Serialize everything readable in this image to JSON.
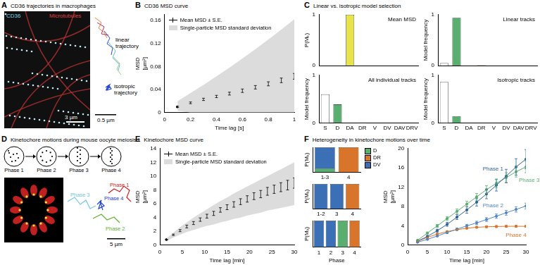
{
  "panels": [
    {
      "letter": "A",
      "title": "CD36 trajectories in macrophages",
      "image_labels": [
        "CD36",
        "Microtubules"
      ],
      "image_scale_bar": "3 µm",
      "trajectory_labels": [
        "linear trajectory",
        "isotropic trajectory"
      ],
      "trajectory_scale_bar": "0.5 µm"
    },
    {
      "letter": "B",
      "title": "CD36 MSD curve"
    },
    {
      "letter": "C",
      "title": "Linear vs. isotropic model selection"
    },
    {
      "letter": "D",
      "title": "Kinetochore motions during mouse oocyte meiosis I",
      "stages": [
        "Phase 1",
        "Phase 2",
        "Phase 3",
        "Phase 4"
      ],
      "trajectory_labels": [
        "Phase 1",
        "Phase 2",
        "Phase 3",
        "Phase 4"
      ],
      "scale_bar": "5 µm"
    },
    {
      "letter": "E",
      "title": "Kinetochore MSD curve"
    },
    {
      "letter": "F",
      "title": "Heterogeneity in kinetochore motions over time"
    }
  ],
  "chart_data": [
    {
      "type": "line",
      "x_label": "Time lag [s]",
      "y_label": [
        "MSD",
        "[µm²]"
      ],
      "legend": "upper left",
      "x": [
        0.1,
        0.2,
        0.3,
        0.4,
        0.5,
        0.6,
        0.7,
        0.8,
        0.9,
        1.0
      ],
      "series": [
        {
          "name": "Mean MSD ± S.E.",
          "color": "#000000",
          "values": [
            0.01,
            0.017,
            0.023,
            0.028,
            0.033,
            0.038,
            0.044,
            0.05,
            0.056,
            0.063
          ],
          "error": [
            0.001,
            0.0015,
            0.002,
            0.002,
            0.0025,
            0.003,
            0.003,
            0.0035,
            0.004,
            0.005
          ]
        }
      ],
      "band": {
        "name": "Single-particle MSD standard deviation",
        "color": "#dcdcdc",
        "lower": [
          0.003,
          0,
          0,
          0,
          0,
          0,
          0,
          0,
          0,
          0
        ],
        "upper": [
          0.02,
          0.034,
          0.048,
          0.063,
          0.078,
          0.094,
          0.11,
          0.127,
          0.144,
          0.162
        ]
      },
      "xlim": [
        0,
        1
      ],
      "xticks": [
        0,
        0.2,
        0.4,
        0.6,
        0.8,
        1
      ],
      "ylim": [
        0,
        0.17
      ],
      "yticks": [
        0,
        0.04,
        0.08,
        0.12,
        0.16
      ]
    },
    {
      "type": "bar",
      "title": "Mean MSD",
      "y_label": "P(Mₖ)",
      "tick_labels": "y",
      "categories": [
        "S",
        "D",
        "DA",
        "DR",
        "V",
        "DV",
        "DAV",
        "DRV"
      ],
      "values": [
        0,
        0,
        1,
        0,
        0,
        0,
        0,
        0
      ],
      "colors": [
        "#ffffff",
        "#5aae6f",
        "#e8e34a",
        "#d9752b",
        "#9e9e9e",
        "#3b6fb6",
        "#a8a8a8",
        "#b8b8b8"
      ],
      "ylim": [
        0,
        1
      ],
      "yticks": [
        0,
        1
      ]
    },
    {
      "type": "bar",
      "title": "Linear tracks",
      "y_label": "Model frequency",
      "tick_labels": "y",
      "categories": [
        "S",
        "D",
        "DA",
        "DR",
        "V",
        "DV",
        "DAV",
        "DRV"
      ],
      "values": [
        0.05,
        0.94,
        0,
        0.01,
        0,
        0,
        0,
        0
      ],
      "colors": [
        "#ffffff",
        "#5aae6f",
        "#e8e34a",
        "#d9752b",
        "#9e9e9e",
        "#3b6fb6",
        "#a8a8a8",
        "#b8b8b8"
      ],
      "ylim": [
        0,
        1
      ],
      "yticks": [
        0,
        1
      ]
    },
    {
      "type": "bar",
      "title": "All individual tracks",
      "y_label": "Model frequency",
      "categories": [
        "S",
        "D",
        "DA",
        "DR",
        "V",
        "DV",
        "DAV",
        "DRV"
      ],
      "values": [
        0.6,
        0.39,
        0,
        0.01,
        0,
        0,
        0,
        0
      ],
      "colors": [
        "#ffffff",
        "#5aae6f",
        "#e8e34a",
        "#d9752b",
        "#9e9e9e",
        "#3b6fb6",
        "#a8a8a8",
        "#b8b8b8"
      ],
      "ylim": [
        0,
        1
      ],
      "yticks": [
        0,
        1
      ]
    },
    {
      "type": "bar",
      "title": "Isotropic tracks",
      "y_label": "Model frequency",
      "categories": [
        "S",
        "D",
        "DA",
        "DR",
        "V",
        "DV",
        "DAV",
        "DRV"
      ],
      "values": [
        0.86,
        0.14,
        0,
        0,
        0,
        0,
        0,
        0
      ],
      "colors": [
        "#ffffff",
        "#5aae6f",
        "#e8e34a",
        "#d9752b",
        "#9e9e9e",
        "#3b6fb6",
        "#a8a8a8",
        "#b8b8b8"
      ],
      "ylim": [
        0,
        1
      ],
      "yticks": [
        0,
        1
      ]
    },
    {
      "type": "line",
      "x_label": "Time lag [min]",
      "y_label": [
        "MSD",
        "[µm²]"
      ],
      "legend": "upper left",
      "x": [
        1.5,
        3,
        4.5,
        6,
        7.5,
        9,
        10.5,
        12,
        13.5,
        15,
        16.5,
        18,
        19.5,
        21,
        22.5,
        24,
        25.5,
        27,
        28.5,
        30
      ],
      "series": [
        {
          "name": "Mean MSD ± S.E.",
          "color": "#000000",
          "values": [
            0.8,
            1.5,
            2.1,
            2.7,
            3.2,
            3.7,
            4.2,
            4.6,
            5.1,
            5.5,
            5.9,
            6.3,
            6.7,
            7.1,
            7.4,
            7.8,
            8.1,
            8.4,
            8.7,
            9.0
          ],
          "error": [
            0.05,
            0.1,
            0.15,
            0.2,
            0.22,
            0.25,
            0.28,
            0.3,
            0.33,
            0.36,
            0.4,
            0.43,
            0.46,
            0.5,
            0.53,
            0.57,
            0.6,
            0.65,
            0.7,
            0.75
          ]
        }
      ],
      "band": {
        "name": "Single-particle MSD standard deviation",
        "color": "#dcdcdc",
        "lower": [
          0.6,
          1.1,
          1.5,
          1.9,
          2.2,
          2.5,
          2.8,
          3.0,
          3.3,
          3.5,
          3.8,
          4.0,
          4.3,
          4.5,
          4.7,
          5.0,
          5.2,
          5.4,
          5.6,
          5.8
        ],
        "upper": [
          1.0,
          1.8,
          2.6,
          3.3,
          4.0,
          4.6,
          5.2,
          5.8,
          6.4,
          6.9,
          7.5,
          8.0,
          8.5,
          9.0,
          9.5,
          10.0,
          10.5,
          11.0,
          11.5,
          12.0
        ]
      },
      "xlim": [
        0,
        30
      ],
      "xticks": [
        0,
        5,
        10,
        15,
        20,
        25,
        30
      ],
      "ylim": [
        0,
        14
      ],
      "yticks": [
        0,
        2,
        4,
        6,
        8,
        10,
        12,
        14
      ]
    },
    {
      "type": "bar",
      "stacked": true,
      "y_label": "P(Mₖ)",
      "tick_labels": "x",
      "legend": "right",
      "categories": [
        "1-3",
        "4"
      ],
      "series": [
        {
          "name": "D",
          "color": "#5aae6f",
          "values": [
            0.15,
            0
          ]
        },
        {
          "name": "DR",
          "color": "#d9752b",
          "values": [
            0,
            1
          ]
        },
        {
          "name": "DV",
          "color": "#3b6fb6",
          "values": [
            0.85,
            0
          ]
        }
      ],
      "ylim": [
        0,
        1
      ],
      "yticks": [
        0,
        1
      ]
    },
    {
      "type": "bar",
      "stacked": true,
      "y_label": "P(Mₖ)",
      "tick_labels": "x",
      "categories": [
        "1-2",
        "3",
        "4"
      ],
      "series": [
        {
          "name": "D",
          "color": "#5aae6f",
          "values": [
            0,
            0,
            0
          ]
        },
        {
          "name": "DR",
          "color": "#d9752b",
          "values": [
            0,
            0,
            1
          ]
        },
        {
          "name": "DV",
          "color": "#3b6fb6",
          "values": [
            1,
            1,
            0
          ]
        }
      ],
      "ylim": [
        0,
        1
      ],
      "yticks": [
        0,
        1
      ]
    },
    {
      "type": "bar",
      "stacked": true,
      "y_label": "P(Mₖ)",
      "x_label": "Phase",
      "tick_labels": "x",
      "categories": [
        "1",
        "2",
        "3",
        "4"
      ],
      "series": [
        {
          "name": "D",
          "color": "#5aae6f",
          "values": [
            0,
            0,
            1,
            0
          ]
        },
        {
          "name": "DR",
          "color": "#d9752b",
          "values": [
            0,
            0,
            0,
            1
          ]
        },
        {
          "name": "DV",
          "color": "#3b6fb6",
          "values": [
            1,
            1,
            0,
            0
          ]
        }
      ],
      "ylim": [
        0,
        1
      ],
      "yticks": [
        0,
        1
      ]
    },
    {
      "type": "line",
      "x_label": "Time lag [min]",
      "y_label": [
        "MSD",
        "[µm²]"
      ],
      "x": [
        2.5,
        5,
        7.5,
        10,
        12.5,
        15,
        17.5,
        20,
        22.5,
        25,
        27.5,
        30
      ],
      "series": [
        {
          "name": "Phase 1",
          "color": "#2e5f9e",
          "values": [
            0.8,
            1.8,
            3.0,
            4.3,
            5.8,
            7.3,
            8.9,
            10.6,
            12.4,
            14.3,
            16.2,
            17.8
          ],
          "error": [
            0.1,
            0.2,
            0.3,
            0.4,
            0.5,
            0.7,
            0.8,
            1.0,
            1.2,
            1.4,
            1.7,
            2.0
          ]
        },
        {
          "name": "Phase 2",
          "color": "#4f86c6",
          "values": [
            0.6,
            1.2,
            1.9,
            2.6,
            3.3,
            4.0,
            4.6,
            5.3,
            6.0,
            6.7,
            7.4,
            8.1
          ],
          "error": [
            0.05,
            0.1,
            0.15,
            0.2,
            0.25,
            0.3,
            0.35,
            0.4,
            0.45,
            0.5,
            0.55,
            0.6
          ]
        },
        {
          "name": "Phase 3",
          "color": "#5aae6f",
          "values": [
            1.0,
            2.5,
            4.0,
            5.5,
            7.0,
            8.5,
            10.0,
            11.5,
            12.8,
            14.0,
            15.2,
            16.2
          ],
          "error": [
            0.1,
            0.2,
            0.3,
            0.4,
            0.5,
            0.6,
            0.7,
            0.8,
            0.9,
            1.0,
            1.1,
            1.2
          ]
        },
        {
          "name": "Phase 4",
          "color": "#d9752b",
          "values": [
            0.8,
            1.6,
            2.3,
            2.8,
            3.2,
            3.5,
            3.7,
            3.8,
            3.85,
            3.9,
            3.9,
            3.9
          ],
          "error": [
            0.05,
            0.08,
            0.1,
            0.12,
            0.14,
            0.16,
            0.18,
            0.2,
            0.2,
            0.2,
            0.2,
            0.2
          ]
        }
      ],
      "xlim": [
        0,
        30
      ],
      "xticks": [
        0,
        5,
        10,
        15,
        20,
        25,
        30
      ],
      "ylim": [
        0,
        20
      ],
      "yticks": [
        0,
        4,
        8,
        12,
        16,
        20
      ]
    }
  ]
}
